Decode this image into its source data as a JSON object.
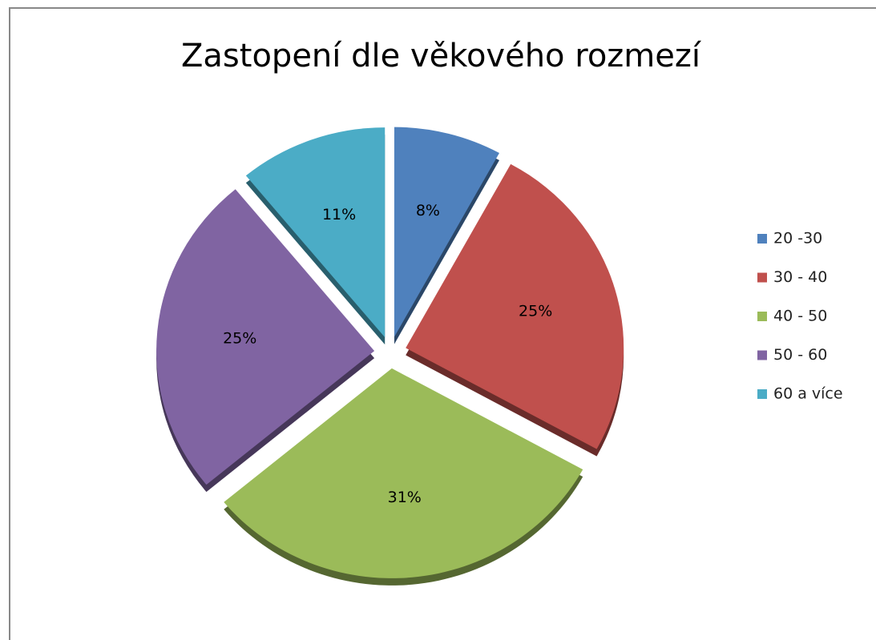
{
  "chart_data": {
    "type": "pie",
    "title": "Zastopení dle věkového rozmezí",
    "categories": [
      "20 -30",
      "30 - 40",
      "40 - 50",
      "50 - 60",
      "60 a více"
    ],
    "values": [
      8,
      25,
      31,
      25,
      11
    ],
    "value_labels": [
      "8%",
      "25%",
      "31%",
      "25%",
      "11%"
    ],
    "colors": [
      "#4f81bd",
      "#c0504d",
      "#9bbb59",
      "#8064a2",
      "#4bacc6"
    ],
    "legend": "right"
  }
}
